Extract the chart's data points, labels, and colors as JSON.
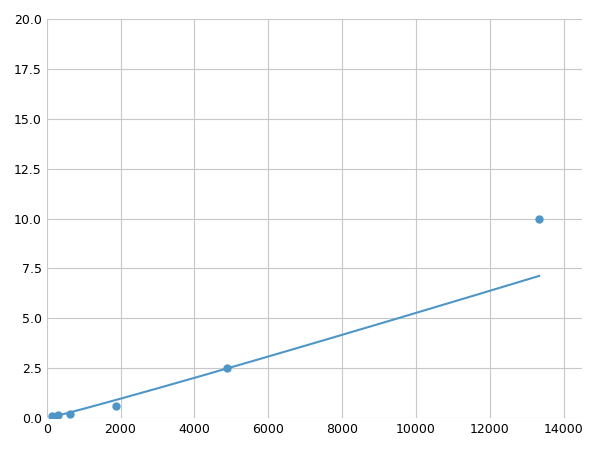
{
  "x": [
    156,
    313,
    625,
    1875,
    4875,
    13333
  ],
  "y": [
    0.1,
    0.15,
    0.2,
    0.6,
    2.5,
    10.0
  ],
  "line_color": "#4e96c8",
  "marker_color": "#4e96c8",
  "marker_size": 5,
  "xlim": [
    0,
    14500
  ],
  "ylim": [
    0,
    20
  ],
  "xticks": [
    0,
    2000,
    4000,
    6000,
    8000,
    10000,
    12000,
    14000
  ],
  "yticks": [
    0.0,
    2.5,
    5.0,
    7.5,
    10.0,
    12.5,
    15.0,
    17.5,
    20.0
  ],
  "grid_color": "#c8c8c8",
  "background_color": "#ffffff",
  "fig_width": 6.0,
  "fig_height": 4.5,
  "dpi": 100
}
